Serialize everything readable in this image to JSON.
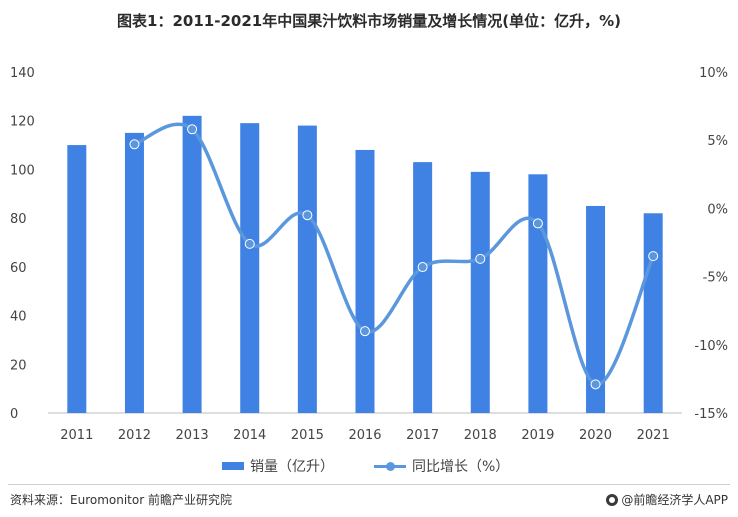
{
  "chart_data": {
    "type": "bar",
    "title": "图表1：2011-2021年中国果汁饮料市场销量及增长情况(单位：亿升，%)",
    "categories": [
      "2011",
      "2012",
      "2013",
      "2014",
      "2015",
      "2016",
      "2017",
      "2018",
      "2019",
      "2020",
      "2021"
    ],
    "series": [
      {
        "name": "销量（亿升）",
        "type": "bar",
        "axis": "left",
        "color": "#3f82e3",
        "values": [
          110,
          115,
          122,
          119,
          118,
          108,
          103,
          99,
          98,
          85,
          82
        ]
      },
      {
        "name": "同比增长（%）",
        "type": "line",
        "axis": "right",
        "color": "#5b97dd",
        "values": [
          null,
          4.7,
          5.8,
          -2.6,
          -0.5,
          -9.0,
          -4.3,
          -3.7,
          -1.1,
          -12.9,
          -3.5
        ]
      }
    ],
    "y_left": {
      "min": 0,
      "max": 140,
      "ticks": [
        0,
        20,
        40,
        60,
        80,
        100,
        120,
        140
      ]
    },
    "y_right": {
      "min": -15,
      "max": 10,
      "ticks": [
        "-15%",
        "-10%",
        "-5%",
        "0%",
        "5%",
        "10%"
      ],
      "tick_values": [
        -15,
        -10,
        -5,
        0,
        5,
        10
      ]
    },
    "legend_position": "bottom",
    "grid": false
  },
  "footer": {
    "source": "资料来源：Euromonitor 前瞻产业研究院",
    "brand": "@前瞻经济学人APP"
  }
}
